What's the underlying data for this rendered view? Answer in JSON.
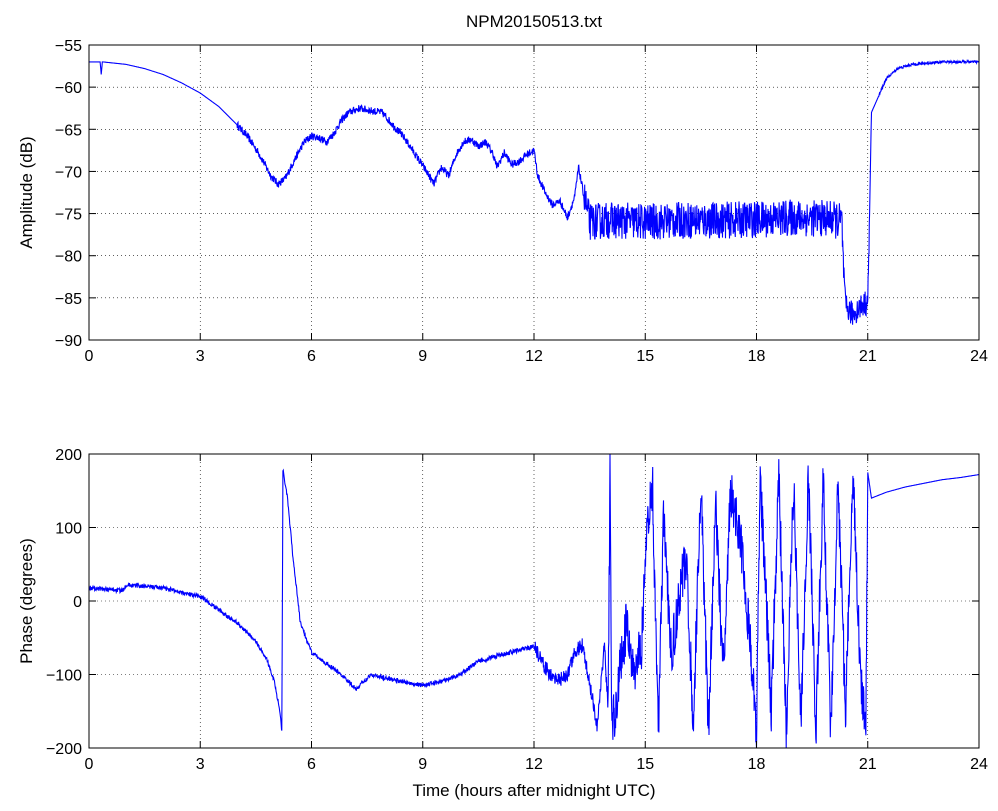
{
  "chart_data": [
    {
      "type": "line",
      "title": "NPM20150513.txt",
      "xlabel": "",
      "ylabel": "Amplitude (dB)",
      "xlim": [
        0,
        24
      ],
      "ylim": [
        -90,
        -55
      ],
      "x_ticks": [
        "0",
        "3",
        "6",
        "9",
        "12",
        "15",
        "18",
        "21",
        "24"
      ],
      "y_ticks": [
        "−90",
        "−85",
        "−80",
        "−75",
        "−70",
        "−65",
        "−60",
        "−55"
      ],
      "grid": true,
      "line_color": "#0000ff",
      "series": [
        {
          "points": [
            [
              0,
              -57
            ],
            [
              0.3,
              -57
            ],
            [
              0.33,
              -58.5
            ],
            [
              0.36,
              -57
            ],
            [
              1,
              -57.3
            ],
            [
              1.5,
              -57.8
            ],
            [
              2,
              -58.5
            ],
            [
              2.5,
              -59.5
            ],
            [
              3,
              -60.7
            ],
            [
              3.5,
              -62.3
            ],
            [
              4,
              -64.5
            ],
            [
              4.3,
              -66
            ],
            [
              4.6,
              -68
            ],
            [
              4.9,
              -70.5
            ],
            [
              5.1,
              -71.5
            ],
            [
              5.3,
              -70.8
            ],
            [
              5.5,
              -69
            ],
            [
              5.8,
              -66.5
            ],
            [
              6,
              -65.8
            ],
            [
              6.2,
              -66
            ],
            [
              6.4,
              -66.5
            ],
            [
              6.6,
              -65.5
            ],
            [
              6.8,
              -64
            ],
            [
              7,
              -63
            ],
            [
              7.3,
              -62.5
            ],
            [
              7.6,
              -62.8
            ],
            [
              7.9,
              -63
            ],
            [
              8.2,
              -64.5
            ],
            [
              8.5,
              -66
            ],
            [
              8.8,
              -68
            ],
            [
              9.1,
              -70
            ],
            [
              9.3,
              -71.5
            ],
            [
              9.5,
              -69.5
            ],
            [
              9.7,
              -70.5
            ],
            [
              9.9,
              -68
            ],
            [
              10.1,
              -66.5
            ],
            [
              10.3,
              -66.2
            ],
            [
              10.5,
              -67
            ],
            [
              10.7,
              -66.5
            ],
            [
              10.9,
              -68
            ],
            [
              11.0,
              -69.5
            ],
            [
              11.2,
              -67.8
            ],
            [
              11.4,
              -69.2
            ],
            [
              11.6,
              -68.8
            ],
            [
              11.8,
              -68
            ],
            [
              12.0,
              -67.5
            ],
            [
              12.1,
              -70.5
            ],
            [
              12.3,
              -72.5
            ],
            [
              12.5,
              -74
            ],
            [
              12.7,
              -73.5
            ],
            [
              12.9,
              -75.5
            ],
            [
              13.1,
              -73
            ],
            [
              13.2,
              -69.5
            ],
            [
              13.35,
              -73
            ],
            [
              13.5,
              -76
            ],
            [
              14,
              -75.8
            ],
            [
              15,
              -76
            ],
            [
              16,
              -75.8
            ],
            [
              17,
              -75.8
            ],
            [
              18,
              -75.7
            ],
            [
              19,
              -75.5
            ],
            [
              20,
              -75.6
            ],
            [
              20.3,
              -76
            ],
            [
              20.35,
              -82
            ],
            [
              20.4,
              -86
            ],
            [
              20.6,
              -87
            ],
            [
              20.8,
              -86
            ],
            [
              21.0,
              -85.5
            ],
            [
              21.05,
              -75
            ],
            [
              21.1,
              -63
            ],
            [
              21.3,
              -61
            ],
            [
              21.5,
              -59
            ],
            [
              21.8,
              -57.8
            ],
            [
              22.2,
              -57.3
            ],
            [
              23,
              -57
            ],
            [
              24,
              -57
            ]
          ],
          "noise": [
            [
              13.35,
              20.35,
              2.2
            ],
            [
              20.35,
              21.05,
              1.5
            ],
            [
              4.0,
              13.35,
              0.45
            ],
            [
              21.3,
              24,
              0.15
            ]
          ]
        }
      ]
    },
    {
      "type": "line",
      "title": "",
      "xlabel": "Time (hours after midnight UTC)",
      "ylabel": "Phase (degrees)",
      "xlim": [
        0,
        24
      ],
      "ylim": [
        -200,
        200
      ],
      "x_ticks": [
        "0",
        "3",
        "6",
        "9",
        "12",
        "15",
        "18",
        "21",
        "24"
      ],
      "y_ticks": [
        "−200",
        "−100",
        "0",
        "100",
        "200"
      ],
      "grid": true,
      "line_color": "#0000ff",
      "series": [
        {
          "points": [
            [
              0,
              18
            ],
            [
              0.9,
              14
            ],
            [
              1.0,
              22
            ],
            [
              1.5,
              20
            ],
            [
              2,
              18
            ],
            [
              2.5,
              12
            ],
            [
              3,
              6
            ],
            [
              3.5,
              -12
            ],
            [
              4,
              -30
            ],
            [
              4.5,
              -55
            ],
            [
              4.8,
              -80
            ],
            [
              5.0,
              -110
            ],
            [
              5.15,
              -150
            ],
            [
              5.2,
              -178
            ],
            [
              5.23,
              180
            ],
            [
              5.35,
              140
            ],
            [
              5.5,
              60
            ],
            [
              5.7,
              -30
            ],
            [
              6.0,
              -70
            ],
            [
              6.4,
              -85
            ],
            [
              6.8,
              -100
            ],
            [
              7.2,
              -120
            ],
            [
              7.6,
              -100
            ],
            [
              8.0,
              -105
            ],
            [
              8.5,
              -110
            ],
            [
              9.0,
              -115
            ],
            [
              9.5,
              -110
            ],
            [
              10.0,
              -100
            ],
            [
              10.5,
              -82
            ],
            [
              11.0,
              -75
            ],
            [
              11.5,
              -68
            ],
            [
              12.0,
              -62
            ],
            [
              12.3,
              -90
            ],
            [
              12.6,
              -110
            ],
            [
              12.9,
              -100
            ],
            [
              13.1,
              -70
            ],
            [
              13.3,
              -60
            ],
            [
              13.5,
              -110
            ],
            [
              13.7,
              -170
            ],
            [
              13.9,
              -60
            ],
            [
              14.0,
              -150
            ],
            [
              14.05,
              175
            ],
            [
              14.1,
              -180
            ],
            [
              14.3,
              -100
            ],
            [
              14.5,
              -30
            ],
            [
              14.7,
              -100
            ],
            [
              14.9,
              -60
            ],
            [
              15.05,
              100
            ],
            [
              15.2,
              150
            ],
            [
              15.35,
              -180
            ],
            [
              15.5,
              120
            ],
            [
              15.7,
              -80
            ],
            [
              15.9,
              0
            ],
            [
              16.1,
              60
            ],
            [
              16.3,
              -170
            ],
            [
              16.5,
              170
            ],
            [
              16.7,
              -180
            ],
            [
              16.9,
              130
            ],
            [
              17.1,
              -100
            ],
            [
              17.3,
              150
            ],
            [
              17.6,
              70
            ],
            [
              17.9,
              -100
            ],
            [
              18.0,
              -180
            ],
            [
              18.1,
              170
            ],
            [
              18.4,
              -150
            ],
            [
              18.6,
              175
            ],
            [
              18.8,
              -180
            ],
            [
              19.0,
              160
            ],
            [
              19.2,
              -170
            ],
            [
              19.4,
              170
            ],
            [
              19.6,
              -180
            ],
            [
              19.8,
              170
            ],
            [
              20.0,
              -170
            ],
            [
              20.2,
              160
            ],
            [
              20.4,
              -150
            ],
            [
              20.6,
              170
            ],
            [
              20.8,
              -100
            ],
            [
              20.95,
              -180
            ],
            [
              21.0,
              175
            ],
            [
              21.1,
              140
            ],
            [
              21.5,
              148
            ],
            [
              22,
              155
            ],
            [
              22.5,
              160
            ],
            [
              23,
              165
            ],
            [
              23.5,
              168
            ],
            [
              24,
              172
            ]
          ],
          "noise": [
            [
              14.0,
              21.0,
              35
            ],
            [
              12.0,
              14.0,
              10
            ],
            [
              0,
              12.0,
              3
            ]
          ]
        }
      ]
    }
  ]
}
